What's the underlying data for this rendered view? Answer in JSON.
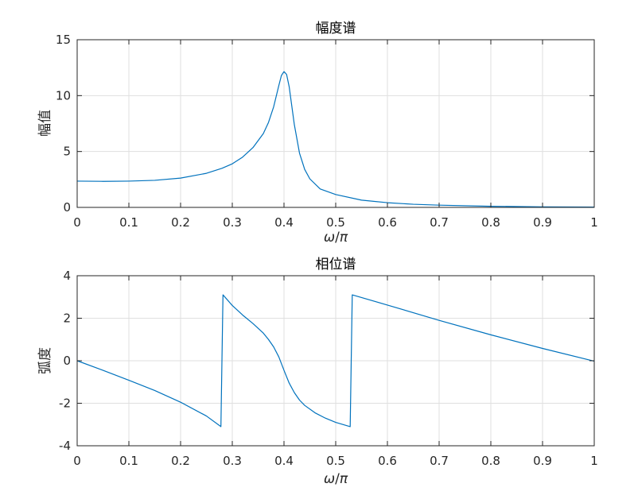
{
  "chart_data": [
    {
      "type": "line",
      "title": "幅度谱",
      "xlabel": "ω/π",
      "ylabel": "幅值",
      "xlim": [
        0,
        1
      ],
      "ylim": [
        0,
        15
      ],
      "xticks": [
        "0",
        "0.1",
        "0.2",
        "0.3",
        "0.4",
        "0.5",
        "0.6",
        "0.7",
        "0.8",
        "0.9",
        "1"
      ],
      "yticks": [
        "0",
        "5",
        "10",
        "15"
      ],
      "grid": true,
      "colors": {
        "line": "#0072BD"
      },
      "series": [
        {
          "x": [
            0,
            0.05,
            0.1,
            0.15,
            0.2,
            0.25,
            0.28,
            0.3,
            0.32,
            0.34,
            0.36,
            0.37,
            0.38,
            0.39,
            0.395,
            0.4,
            0.405,
            0.41,
            0.42,
            0.43,
            0.44,
            0.45,
            0.47,
            0.5,
            0.55,
            0.6,
            0.65,
            0.7,
            0.8,
            0.9,
            1.0
          ],
          "y": [
            2.35,
            2.33,
            2.35,
            2.42,
            2.62,
            3.05,
            3.5,
            3.9,
            4.5,
            5.35,
            6.6,
            7.6,
            9.0,
            10.9,
            11.8,
            12.15,
            11.9,
            10.8,
            7.4,
            4.85,
            3.4,
            2.55,
            1.65,
            1.15,
            0.65,
            0.42,
            0.28,
            0.2,
            0.1,
            0.05,
            0.03
          ]
        }
      ]
    },
    {
      "type": "line",
      "title": "相位谱",
      "xlabel": "ω/π",
      "ylabel": "弧度",
      "xlim": [
        0,
        1
      ],
      "ylim": [
        -4,
        4
      ],
      "xticks": [
        "0",
        "0.1",
        "0.2",
        "0.3",
        "0.4",
        "0.5",
        "0.6",
        "0.7",
        "0.8",
        "0.9",
        "1"
      ],
      "yticks": [
        "-4",
        "-2",
        "0",
        "2",
        "4"
      ],
      "grid": true,
      "colors": {
        "line": "#0072BD"
      },
      "series": [
        {
          "x": [
            0,
            0.05,
            0.1,
            0.15,
            0.2,
            0.25,
            0.278,
            0.282,
            0.3,
            0.32,
            0.34,
            0.36,
            0.37,
            0.38,
            0.39,
            0.4,
            0.41,
            0.42,
            0.43,
            0.44,
            0.46,
            0.48,
            0.5,
            0.528,
            0.532,
            0.6,
            0.7,
            0.8,
            0.9,
            1.0
          ],
          "y": [
            0,
            -0.45,
            -0.92,
            -1.4,
            -1.95,
            -2.6,
            -3.1,
            3.1,
            2.6,
            2.15,
            1.75,
            1.3,
            1.0,
            0.65,
            0.18,
            -0.45,
            -1.05,
            -1.5,
            -1.85,
            -2.1,
            -2.45,
            -2.7,
            -2.9,
            -3.1,
            3.1,
            2.62,
            1.9,
            1.22,
            0.58,
            -0.02
          ]
        }
      ]
    }
  ]
}
